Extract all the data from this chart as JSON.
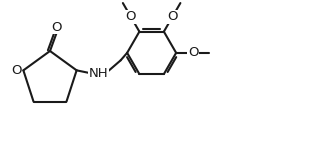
{
  "bg": "#ffffff",
  "lc": "#1a1a1a",
  "lw": 1.5,
  "fs": 9.5,
  "figsize": [
    3.13,
    1.47
  ],
  "dpi": 100,
  "xlim": [
    0.0,
    3.13
  ],
  "ylim": [
    0.0,
    1.47
  ]
}
